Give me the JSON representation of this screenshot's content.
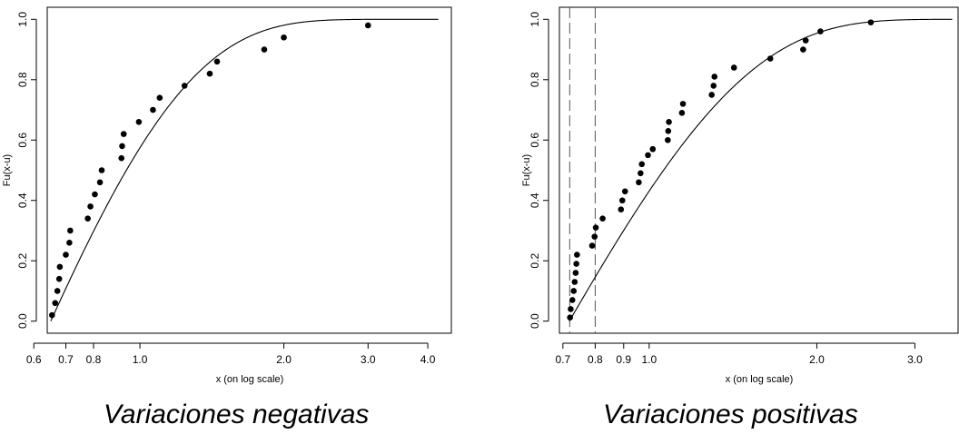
{
  "chart_data": [
    {
      "type": "scatter",
      "title": "",
      "xlabel": "x (on log scale)",
      "ylabel": "Fu(x-u)",
      "x_scale": "log",
      "xlim": [
        0.64,
        4.5
      ],
      "ylim": [
        -0.04,
        1.04
      ],
      "x_ticks": [
        0.6,
        0.7,
        0.8,
        1.0,
        2.0,
        3.0,
        4.0
      ],
      "x_tick_labels": [
        "0.6",
        "0.7",
        "0.8",
        "1.0",
        "2.0",
        "3.0",
        "4.0"
      ],
      "y_ticks": [
        0.0,
        0.2,
        0.4,
        0.6,
        0.8,
        1.0
      ],
      "y_tick_labels": [
        "0.0",
        "0.2",
        "0.4",
        "0.6",
        "0.8",
        "1.0"
      ],
      "caption": "Variaciones negativas",
      "curve": {
        "start": 0.651,
        "sigma": 0.43,
        "xi": -0.12,
        "x_end": 4.4
      },
      "points": [
        {
          "x": 0.655,
          "y": 0.02
        },
        {
          "x": 0.665,
          "y": 0.06
        },
        {
          "x": 0.672,
          "y": 0.1
        },
        {
          "x": 0.678,
          "y": 0.14
        },
        {
          "x": 0.68,
          "y": 0.18
        },
        {
          "x": 0.7,
          "y": 0.22
        },
        {
          "x": 0.712,
          "y": 0.26
        },
        {
          "x": 0.715,
          "y": 0.3
        },
        {
          "x": 0.778,
          "y": 0.34
        },
        {
          "x": 0.788,
          "y": 0.38
        },
        {
          "x": 0.805,
          "y": 0.42
        },
        {
          "x": 0.825,
          "y": 0.46
        },
        {
          "x": 0.832,
          "y": 0.5
        },
        {
          "x": 0.915,
          "y": 0.54
        },
        {
          "x": 0.918,
          "y": 0.58
        },
        {
          "x": 0.925,
          "y": 0.62
        },
        {
          "x": 0.995,
          "y": 0.66
        },
        {
          "x": 1.065,
          "y": 0.7
        },
        {
          "x": 1.1,
          "y": 0.74
        },
        {
          "x": 1.24,
          "y": 0.78
        },
        {
          "x": 1.4,
          "y": 0.82
        },
        {
          "x": 1.45,
          "y": 0.86
        },
        {
          "x": 1.82,
          "y": 0.9
        },
        {
          "x": 2.0,
          "y": 0.94
        },
        {
          "x": 3.0,
          "y": 0.98
        }
      ]
    },
    {
      "type": "scatter",
      "title": "",
      "xlabel": "x (on log scale)",
      "ylabel": "Fu(x-u)",
      "x_scale": "log",
      "xlim": [
        0.69,
        3.6
      ],
      "ylim": [
        -0.04,
        1.04
      ],
      "x_ticks": [
        0.7,
        0.8,
        0.9,
        1.0,
        2.0,
        3.0
      ],
      "x_tick_labels": [
        "0.7",
        "0.8",
        "0.9",
        "1.0",
        "2.0",
        "3.0"
      ],
      "y_ticks": [
        0.0,
        0.2,
        0.4,
        0.6,
        0.8,
        1.0
      ],
      "y_tick_labels": [
        "0.0",
        "0.2",
        "0.4",
        "0.6",
        "0.8",
        "1.0"
      ],
      "vlines": [
        0.72,
        0.8
      ],
      "caption": "Variaciones positivas",
      "curve": {
        "start": 0.719,
        "sigma": 0.52,
        "xi": -0.15,
        "x_end": 3.5
      },
      "points": [
        {
          "x": 0.721,
          "y": 0.012
        },
        {
          "x": 0.723,
          "y": 0.04
        },
        {
          "x": 0.728,
          "y": 0.07
        },
        {
          "x": 0.732,
          "y": 0.1
        },
        {
          "x": 0.735,
          "y": 0.13
        },
        {
          "x": 0.738,
          "y": 0.16
        },
        {
          "x": 0.74,
          "y": 0.19
        },
        {
          "x": 0.742,
          "y": 0.22
        },
        {
          "x": 0.79,
          "y": 0.25
        },
        {
          "x": 0.798,
          "y": 0.28
        },
        {
          "x": 0.802,
          "y": 0.31
        },
        {
          "x": 0.825,
          "y": 0.34
        },
        {
          "x": 0.89,
          "y": 0.37
        },
        {
          "x": 0.895,
          "y": 0.4
        },
        {
          "x": 0.905,
          "y": 0.43
        },
        {
          "x": 0.958,
          "y": 0.46
        },
        {
          "x": 0.965,
          "y": 0.49
        },
        {
          "x": 0.97,
          "y": 0.52
        },
        {
          "x": 0.995,
          "y": 0.55
        },
        {
          "x": 1.015,
          "y": 0.57
        },
        {
          "x": 1.08,
          "y": 0.6
        },
        {
          "x": 1.082,
          "y": 0.63
        },
        {
          "x": 1.085,
          "y": 0.66
        },
        {
          "x": 1.145,
          "y": 0.69
        },
        {
          "x": 1.15,
          "y": 0.72
        },
        {
          "x": 1.295,
          "y": 0.75
        },
        {
          "x": 1.305,
          "y": 0.78
        },
        {
          "x": 1.31,
          "y": 0.81
        },
        {
          "x": 1.42,
          "y": 0.84
        },
        {
          "x": 1.65,
          "y": 0.87
        },
        {
          "x": 1.89,
          "y": 0.9
        },
        {
          "x": 1.91,
          "y": 0.93
        },
        {
          "x": 2.03,
          "y": 0.96
        },
        {
          "x": 2.5,
          "y": 0.99
        }
      ]
    }
  ]
}
